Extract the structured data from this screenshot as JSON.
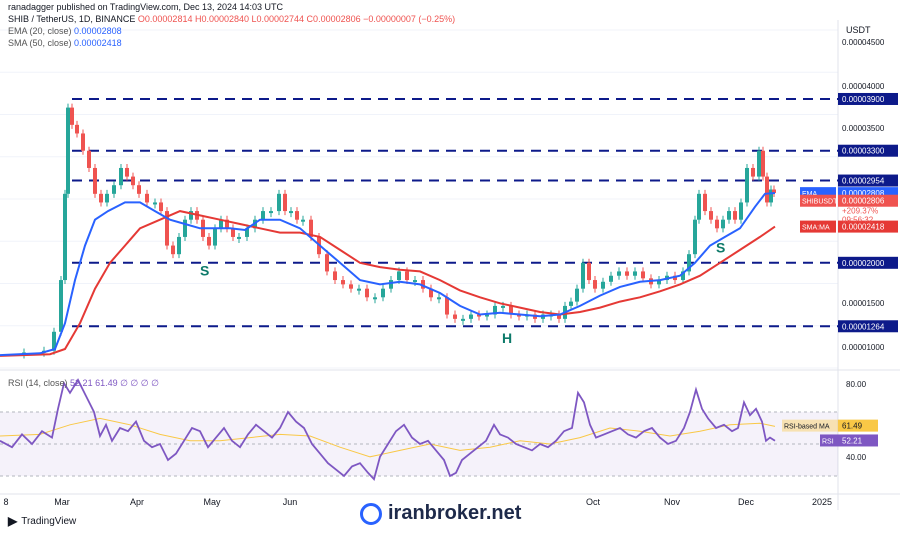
{
  "header": {
    "author": "ranadagger published on TradingView.com, Dec 13, 2024 14:03 UTC",
    "symbol": "SHIB / TetherUS, 1D, BINANCE",
    "ohlc": "O0.00002814 H0.00002840 L0.00002744 C0.00002806 −0.00000007 (−0.25%)",
    "ema_label": "EMA (20, close)",
    "ema_value": "0.00002808",
    "sma_label": "SMA (50, close)",
    "sma_value": "0.00002418",
    "rsi_label": "RSI (14, close)",
    "rsi_values": "52.21  61.49  ∅ ∅ ∅ ∅"
  },
  "branding": {
    "logo_text": "TradingView",
    "watermark": "iranbroker.net"
  },
  "colors": {
    "up": "#26a69a",
    "down": "#ef5350",
    "ema": "#2962ff",
    "sma": "#e53935",
    "rsi": "#7e57c2",
    "rsi_ma": "#f9c846",
    "level": "#0d1a8a"
  },
  "chart_data": {
    "type": "line",
    "currency": "USDT",
    "price_axis": [
      "0.00004500",
      "0.00004000",
      "0.00003500",
      "0.00001500",
      "0.00001000"
    ],
    "x_axis": [
      "8",
      "Mar",
      "Apr",
      "May",
      "Jun",
      "Oct",
      "Nov",
      "Dec",
      "2025"
    ],
    "ylim": [
      7.8e-06,
      4.7e-05
    ],
    "price_series": [
      [
        0,
        9.5e-06
      ],
      [
        25,
        9.6e-06
      ],
      [
        45,
        9.8e-06
      ],
      [
        55,
        1.2e-05
      ],
      [
        62,
        1.8e-05
      ],
      [
        66,
        2.8e-05
      ],
      [
        69,
        3.8e-05
      ],
      [
        73,
        3.6e-05
      ],
      [
        78,
        3.5e-05
      ],
      [
        84,
        3.3e-05
      ],
      [
        90,
        3.1e-05
      ],
      [
        96,
        2.8e-05
      ],
      [
        102,
        2.7e-05
      ],
      [
        108,
        2.8e-05
      ],
      [
        115,
        2.9e-05
      ],
      [
        122,
        3.1e-05
      ],
      [
        128,
        3e-05
      ],
      [
        134,
        2.9e-05
      ],
      [
        140,
        2.8e-05
      ],
      [
        148,
        2.7e-05
      ],
      [
        156,
        2.7e-05
      ],
      [
        162,
        2.6e-05
      ],
      [
        168,
        2.2e-05
      ],
      [
        174,
        2.1e-05
      ],
      [
        180,
        2.3e-05
      ],
      [
        186,
        2.5e-05
      ],
      [
        192,
        2.6e-05
      ],
      [
        198,
        2.5e-05
      ],
      [
        204,
        2.3e-05
      ],
      [
        210,
        2.2e-05
      ],
      [
        216,
        2.4e-05
      ],
      [
        222,
        2.5e-05
      ],
      [
        228,
        2.4e-05
      ],
      [
        234,
        2.3e-05
      ],
      [
        240,
        2.3e-05
      ],
      [
        248,
        2.4e-05
      ],
      [
        256,
        2.5e-05
      ],
      [
        264,
        2.6e-05
      ],
      [
        272,
        2.6e-05
      ],
      [
        280,
        2.8e-05
      ],
      [
        286,
        2.6e-05
      ],
      [
        292,
        2.6e-05
      ],
      [
        298,
        2.5e-05
      ],
      [
        304,
        2.5e-05
      ],
      [
        312,
        2.3e-05
      ],
      [
        320,
        2.1e-05
      ],
      [
        328,
        1.9e-05
      ],
      [
        336,
        1.8e-05
      ],
      [
        344,
        1.75e-05
      ],
      [
        352,
        1.7e-05
      ],
      [
        360,
        1.7e-05
      ],
      [
        368,
        1.6e-05
      ],
      [
        376,
        1.6e-05
      ],
      [
        384,
        1.7e-05
      ],
      [
        392,
        1.8e-05
      ],
      [
        400,
        1.9e-05
      ],
      [
        408,
        1.8e-05
      ],
      [
        416,
        1.8e-05
      ],
      [
        424,
        1.7e-05
      ],
      [
        432,
        1.6e-05
      ],
      [
        440,
        1.6e-05
      ],
      [
        448,
        1.4e-05
      ],
      [
        456,
        1.35e-05
      ],
      [
        464,
        1.35e-05
      ],
      [
        472,
        1.4e-05
      ],
      [
        480,
        1.38e-05
      ],
      [
        488,
        1.4e-05
      ],
      [
        496,
        1.5e-05
      ],
      [
        504,
        1.5e-05
      ],
      [
        512,
        1.4e-05
      ],
      [
        520,
        1.38e-05
      ],
      [
        528,
        1.4e-05
      ],
      [
        536,
        1.35e-05
      ],
      [
        544,
        1.4e-05
      ],
      [
        552,
        1.4e-05
      ],
      [
        560,
        1.35e-05
      ],
      [
        566,
        1.5e-05
      ],
      [
        572,
        1.55e-05
      ],
      [
        578,
        1.7e-05
      ],
      [
        584,
        2e-05
      ],
      [
        590,
        1.8e-05
      ],
      [
        596,
        1.7e-05
      ],
      [
        604,
        1.78e-05
      ],
      [
        612,
        1.85e-05
      ],
      [
        620,
        1.9e-05
      ],
      [
        628,
        1.85e-05
      ],
      [
        636,
        1.9e-05
      ],
      [
        644,
        1.82e-05
      ],
      [
        652,
        1.75e-05
      ],
      [
        660,
        1.8e-05
      ],
      [
        668,
        1.85e-05
      ],
      [
        676,
        1.8e-05
      ],
      [
        684,
        1.9e-05
      ],
      [
        690,
        2.1e-05
      ],
      [
        696,
        2.5e-05
      ],
      [
        700,
        2.8e-05
      ],
      [
        706,
        2.6e-05
      ],
      [
        712,
        2.5e-05
      ],
      [
        718,
        2.4e-05
      ],
      [
        724,
        2.5e-05
      ],
      [
        730,
        2.6e-05
      ],
      [
        736,
        2.5e-05
      ],
      [
        742,
        2.7e-05
      ],
      [
        748,
        3.1e-05
      ],
      [
        754,
        3e-05
      ],
      [
        760,
        3.3e-05
      ],
      [
        764,
        3e-05
      ],
      [
        768,
        2.7e-05
      ],
      [
        772,
        2.85e-05
      ],
      [
        775,
        2.81e-05
      ]
    ],
    "ema_series": [
      [
        0,
        9.3e-06
      ],
      [
        40,
        9.5e-06
      ],
      [
        55,
        1e-05
      ],
      [
        65,
        1.3e-05
      ],
      [
        75,
        1.8e-05
      ],
      [
        85,
        2.2e-05
      ],
      [
        95,
        2.5e-05
      ],
      [
        108,
        2.6e-05
      ],
      [
        125,
        2.7e-05
      ],
      [
        140,
        2.7e-05
      ],
      [
        155,
        2.6e-05
      ],
      [
        170,
        2.5e-05
      ],
      [
        185,
        2.45e-05
      ],
      [
        200,
        2.4e-05
      ],
      [
        215,
        2.4e-05
      ],
      [
        230,
        2.4e-05
      ],
      [
        245,
        2.38e-05
      ],
      [
        260,
        2.5e-05
      ],
      [
        280,
        2.5e-05
      ],
      [
        300,
        2.4e-05
      ],
      [
        320,
        2.2e-05
      ],
      [
        340,
        2e-05
      ],
      [
        360,
        1.8e-05
      ],
      [
        380,
        1.75e-05
      ],
      [
        400,
        1.78e-05
      ],
      [
        420,
        1.75e-05
      ],
      [
        440,
        1.65e-05
      ],
      [
        460,
        1.5e-05
      ],
      [
        480,
        1.4e-05
      ],
      [
        500,
        1.42e-05
      ],
      [
        520,
        1.4e-05
      ],
      [
        540,
        1.38e-05
      ],
      [
        560,
        1.4e-05
      ],
      [
        580,
        1.5e-05
      ],
      [
        600,
        1.62e-05
      ],
      [
        620,
        1.72e-05
      ],
      [
        640,
        1.78e-05
      ],
      [
        660,
        1.8e-05
      ],
      [
        680,
        1.85e-05
      ],
      [
        695,
        2e-05
      ],
      [
        710,
        2.2e-05
      ],
      [
        725,
        2.3e-05
      ],
      [
        740,
        2.4e-05
      ],
      [
        755,
        2.65e-05
      ],
      [
        765,
        2.8e-05
      ],
      [
        775,
        2.81e-05
      ]
    ],
    "sma_series": [
      [
        0,
        9.2e-06
      ],
      [
        50,
        9.4e-06
      ],
      [
        65,
        1e-05
      ],
      [
        80,
        1.3e-05
      ],
      [
        95,
        1.7e-05
      ],
      [
        110,
        2e-05
      ],
      [
        125,
        2.2e-05
      ],
      [
        140,
        2.4e-05
      ],
      [
        160,
        2.5e-05
      ],
      [
        180,
        2.6e-05
      ],
      [
        200,
        2.55e-05
      ],
      [
        220,
        2.5e-05
      ],
      [
        240,
        2.45e-05
      ],
      [
        260,
        2.4e-05
      ],
      [
        280,
        2.35e-05
      ],
      [
        300,
        2.35e-05
      ],
      [
        320,
        2.3e-05
      ],
      [
        340,
        2.15e-05
      ],
      [
        360,
        2e-05
      ],
      [
        380,
        1.95e-05
      ],
      [
        400,
        1.92e-05
      ],
      [
        420,
        1.9e-05
      ],
      [
        440,
        1.8e-05
      ],
      [
        460,
        1.68e-05
      ],
      [
        480,
        1.6e-05
      ],
      [
        500,
        1.53e-05
      ],
      [
        520,
        1.48e-05
      ],
      [
        540,
        1.43e-05
      ],
      [
        560,
        1.4e-05
      ],
      [
        580,
        1.43e-05
      ],
      [
        600,
        1.48e-05
      ],
      [
        620,
        1.55e-05
      ],
      [
        640,
        1.6e-05
      ],
      [
        660,
        1.67e-05
      ],
      [
        680,
        1.75e-05
      ],
      [
        700,
        1.85e-05
      ],
      [
        720,
        2e-05
      ],
      [
        740,
        2.15e-05
      ],
      [
        760,
        2.3e-05
      ],
      [
        775,
        2.42e-05
      ]
    ],
    "levels": [
      {
        "label": "0.00003900",
        "value": 3.9e-05
      },
      {
        "label": "0.00003300",
        "value": 3.3e-05
      },
      {
        "label": "0.00002954",
        "value": 2.954e-05
      },
      {
        "label": "0.00002000",
        "value": 2e-05
      },
      {
        "label": "0.00001264",
        "value": 1.264e-05
      }
    ],
    "price_tags": [
      {
        "name": "EMA",
        "value": "0.00002808",
        "color": "#2962ff",
        "y": 2.808e-05
      },
      {
        "name": "SHIBUSDT",
        "value": "0.00002806",
        "color": "#ef5350",
        "y": 2.72e-05
      },
      {
        "name": "SMA:MA",
        "value": "0.00002418",
        "color": "#e53935",
        "y": 2.42e-05
      }
    ],
    "price_info": [
      "+209.37%",
      "09:56:32"
    ],
    "annotations": [
      {
        "text": "S",
        "x": 200,
        "y": 1.85e-05,
        "color": "#0d7a6a"
      },
      {
        "text": "H",
        "x": 502,
        "y": 1.07e-05,
        "color": "#0d7a6a"
      },
      {
        "text": "S",
        "x": 716,
        "y": 2.12e-05,
        "color": "#0d7a6a"
      }
    ],
    "rsi": {
      "ylim": [
        20,
        95
      ],
      "axis": [
        "80.00",
        "40.00"
      ],
      "bands": [
        70,
        30
      ],
      "rsi_label": "RSI",
      "rsi_value": "52.21",
      "ma_label": "RSI-based MA",
      "ma_value": "61.49",
      "series": [
        [
          0,
          52
        ],
        [
          12,
          48
        ],
        [
          22,
          56
        ],
        [
          32,
          50
        ],
        [
          42,
          58
        ],
        [
          52,
          54
        ],
        [
          58,
          72
        ],
        [
          64,
          88
        ],
        [
          70,
          82
        ],
        [
          78,
          90
        ],
        [
          86,
          80
        ],
        [
          94,
          70
        ],
        [
          100,
          55
        ],
        [
          106,
          62
        ],
        [
          112,
          52
        ],
        [
          120,
          60
        ],
        [
          128,
          58
        ],
        [
          136,
          64
        ],
        [
          144,
          52
        ],
        [
          152,
          48
        ],
        [
          160,
          50
        ],
        [
          168,
          40
        ],
        [
          176,
          44
        ],
        [
          184,
          52
        ],
        [
          192,
          60
        ],
        [
          200,
          58
        ],
        [
          208,
          48
        ],
        [
          216,
          54
        ],
        [
          224,
          60
        ],
        [
          232,
          52
        ],
        [
          240,
          48
        ],
        [
          248,
          56
        ],
        [
          256,
          62
        ],
        [
          264,
          58
        ],
        [
          272,
          54
        ],
        [
          280,
          60
        ],
        [
          288,
          70
        ],
        [
          296,
          64
        ],
        [
          304,
          60
        ],
        [
          312,
          50
        ],
        [
          320,
          44
        ],
        [
          328,
          38
        ],
        [
          336,
          34
        ],
        [
          344,
          30
        ],
        [
          352,
          36
        ],
        [
          360,
          38
        ],
        [
          368,
          32
        ],
        [
          374,
          28
        ],
        [
          380,
          42
        ],
        [
          388,
          50
        ],
        [
          396,
          58
        ],
        [
          404,
          62
        ],
        [
          412,
          54
        ],
        [
          420,
          50
        ],
        [
          428,
          52
        ],
        [
          436,
          46
        ],
        [
          444,
          40
        ],
        [
          450,
          30
        ],
        [
          456,
          32
        ],
        [
          462,
          40
        ],
        [
          470,
          44
        ],
        [
          478,
          48
        ],
        [
          486,
          52
        ],
        [
          494,
          62
        ],
        [
          500,
          56
        ],
        [
          508,
          54
        ],
        [
          516,
          50
        ],
        [
          524,
          48
        ],
        [
          532,
          46
        ],
        [
          540,
          50
        ],
        [
          548,
          48
        ],
        [
          556,
          52
        ],
        [
          564,
          58
        ],
        [
          572,
          60
        ],
        [
          578,
          82
        ],
        [
          584,
          76
        ],
        [
          590,
          62
        ],
        [
          596,
          54
        ],
        [
          604,
          56
        ],
        [
          612,
          58
        ],
        [
          620,
          60
        ],
        [
          628,
          56
        ],
        [
          636,
          54
        ],
        [
          644,
          58
        ],
        [
          652,
          60
        ],
        [
          660,
          54
        ],
        [
          668,
          50
        ],
        [
          676,
          52
        ],
        [
          684,
          60
        ],
        [
          690,
          70
        ],
        [
          696,
          84
        ],
        [
          702,
          72
        ],
        [
          708,
          66
        ],
        [
          716,
          60
        ],
        [
          724,
          62
        ],
        [
          732,
          58
        ],
        [
          738,
          60
        ],
        [
          744,
          76
        ],
        [
          750,
          68
        ],
        [
          756,
          72
        ],
        [
          762,
          64
        ],
        [
          766,
          52
        ],
        [
          770,
          54
        ],
        [
          775,
          52
        ]
      ],
      "ma_series": [
        [
          0,
          55
        ],
        [
          40,
          56
        ],
        [
          70,
          62
        ],
        [
          100,
          66
        ],
        [
          130,
          62
        ],
        [
          160,
          56
        ],
        [
          190,
          52
        ],
        [
          220,
          52
        ],
        [
          250,
          54
        ],
        [
          280,
          56
        ],
        [
          310,
          55
        ],
        [
          340,
          48
        ],
        [
          370,
          42
        ],
        [
          400,
          46
        ],
        [
          430,
          50
        ],
        [
          460,
          46
        ],
        [
          490,
          48
        ],
        [
          520,
          52
        ],
        [
          550,
          50
        ],
        [
          580,
          54
        ],
        [
          610,
          60
        ],
        [
          640,
          58
        ],
        [
          670,
          55
        ],
        [
          700,
          58
        ],
        [
          730,
          62
        ],
        [
          760,
          63
        ],
        [
          775,
          61
        ]
      ]
    }
  }
}
